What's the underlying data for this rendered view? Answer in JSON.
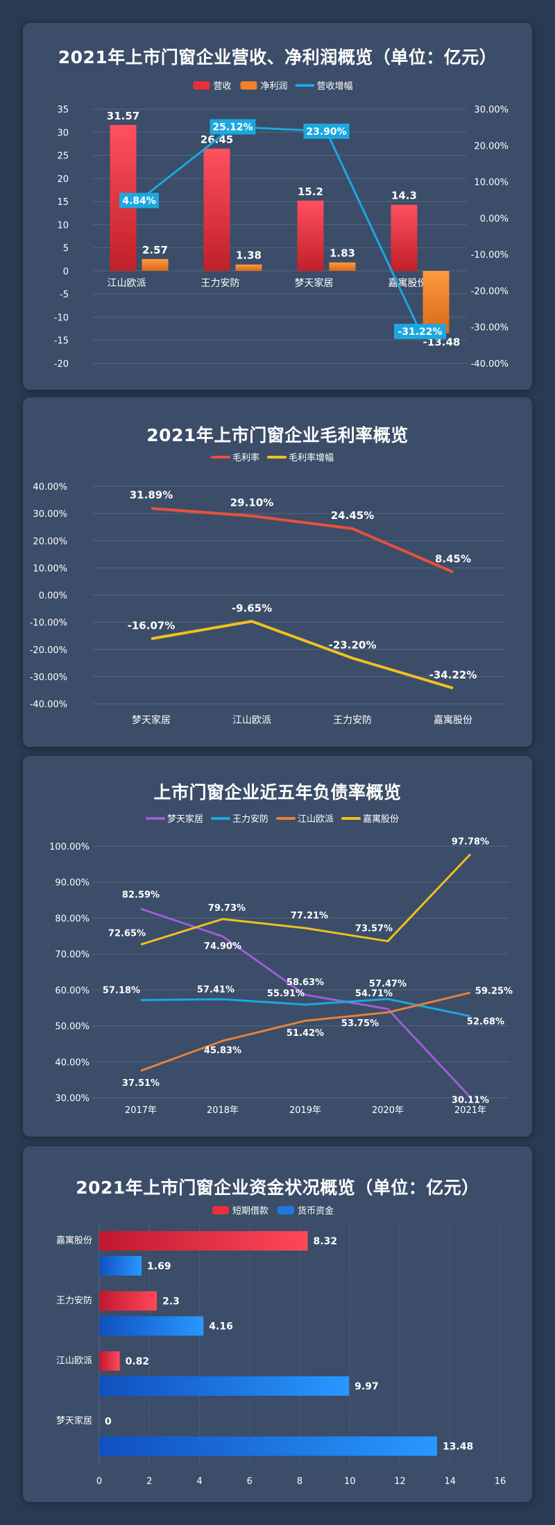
{
  "chart_data": [
    {
      "type": "bar",
      "title": "2021年上市门窗企业营收、净利润概览（单位：亿元）",
      "categories": [
        "江山欧派",
        "王力安防",
        "梦天家居",
        "嘉寓股份"
      ],
      "series": [
        {
          "name": "营收",
          "type": "bar",
          "values": [
            31.57,
            26.45,
            15.2,
            14.3
          ],
          "labels": [
            "31.57",
            "26.45",
            "15.2",
            "14.3"
          ],
          "color": "#e8303a"
        },
        {
          "name": "净利润",
          "type": "bar",
          "values": [
            2.57,
            1.38,
            1.83,
            -13.48
          ],
          "labels": [
            "2.57",
            "1.38",
            "1.83",
            "-13.48"
          ],
          "color": "#f0802a"
        },
        {
          "name": "营收增幅",
          "type": "line",
          "axis": "right",
          "values": [
            4.84,
            25.12,
            23.9,
            -31.22
          ],
          "labels": [
            "4.84%",
            "25.12%",
            "23.90%",
            "-31.22%"
          ],
          "color": "#1ba8e0"
        }
      ],
      "ylim": [
        -20,
        35
      ],
      "y_ticks": [
        "35",
        "30",
        "25",
        "20",
        "15",
        "10",
        "5",
        "0",
        "-5",
        "-10",
        "-15",
        "-20"
      ],
      "y2lim": [
        -40,
        30
      ],
      "y2_ticks": [
        "30.00%",
        "20.00%",
        "10.00%",
        "0.00%",
        "-10.00%",
        "-20.00%",
        "-30.00%",
        "-40.00%"
      ],
      "legend_position": "top-center",
      "grid": true
    },
    {
      "type": "line",
      "title": "2021年上市门窗企业毛利率概览",
      "categories": [
        "梦天家居",
        "江山欧派",
        "王力安防",
        "嘉寓股份"
      ],
      "series": [
        {
          "name": "毛利率",
          "values": [
            31.89,
            29.1,
            24.45,
            8.45
          ],
          "labels": [
            "31.89%",
            "29.10%",
            "24.45%",
            "8.45%"
          ],
          "color": "#e8503a"
        },
        {
          "name": "毛利率增幅",
          "values": [
            -16.07,
            -9.65,
            -23.2,
            -34.22
          ],
          "labels": [
            "-16.07%",
            "-9.65%",
            "-23.20%",
            "-34.22%"
          ],
          "color": "#f0c020"
        }
      ],
      "ylim": [
        -40,
        40
      ],
      "y_ticks": [
        "40.00%",
        "30.00%",
        "20.00%",
        "10.00%",
        "0.00%",
        "-10.00%",
        "-20.00%",
        "-30.00%",
        "-40.00%"
      ],
      "legend_position": "top-center",
      "grid": true
    },
    {
      "type": "line",
      "title": "上市门窗企业近五年负债率概览",
      "categories": [
        "2017年",
        "2018年",
        "2019年",
        "2020年",
        "2021年"
      ],
      "series": [
        {
          "name": "梦天家居",
          "values": [
            82.59,
            74.9,
            58.63,
            54.71,
            30.11
          ],
          "labels": [
            "82.59%",
            "74.90%",
            "58.63%",
            "54.71%",
            "30.11%"
          ],
          "color": "#9b5fd6"
        },
        {
          "name": "王力安防",
          "values": [
            57.18,
            57.41,
            55.91,
            57.47,
            52.68
          ],
          "labels": [
            "57.18%",
            "57.41%",
            "55.91%",
            "57.47%",
            "52.68%"
          ],
          "color": "#1ba8e0"
        },
        {
          "name": "江山欧派",
          "values": [
            37.51,
            45.83,
            51.42,
            53.75,
            59.25
          ],
          "labels": [
            "37.51%",
            "45.83%",
            "51.42%",
            "53.75%",
            "59.25%"
          ],
          "color": "#e8803a"
        },
        {
          "name": "嘉寓股份",
          "values": [
            72.65,
            79.73,
            77.21,
            73.57,
            97.78
          ],
          "labels": [
            "72.65%",
            "79.73%",
            "77.21%",
            "73.57%",
            "97.78%"
          ],
          "color": "#f0c020"
        }
      ],
      "ylim": [
        30,
        100
      ],
      "y_ticks": [
        "100.00%",
        "90.00%",
        "80.00%",
        "70.00%",
        "60.00%",
        "50.00%",
        "40.00%",
        "30.00%"
      ],
      "legend_position": "top-center",
      "grid": true
    },
    {
      "type": "bar",
      "orientation": "horizontal",
      "title": "2021年上市门窗企业资金状况概览（单位：亿元）",
      "categories": [
        "嘉寓股份",
        "王力安防",
        "江山欧派",
        "梦天家居"
      ],
      "series": [
        {
          "name": "短期借款",
          "values": [
            8.32,
            2.3,
            0.82,
            0
          ],
          "labels": [
            "8.32",
            "2.3",
            "0.82",
            "0"
          ],
          "color": "#e8303a"
        },
        {
          "name": "货币资金",
          "values": [
            1.69,
            4.16,
            9.97,
            13.48
          ],
          "labels": [
            "1.69",
            "4.16",
            "9.97",
            "13.48"
          ],
          "color": "#1e78e0"
        }
      ],
      "xlim": [
        0,
        16
      ],
      "x_ticks": [
        "0",
        "2",
        "4",
        "6",
        "8",
        "10",
        "12",
        "14",
        "16"
      ],
      "legend_position": "top-center",
      "grid": true
    }
  ]
}
